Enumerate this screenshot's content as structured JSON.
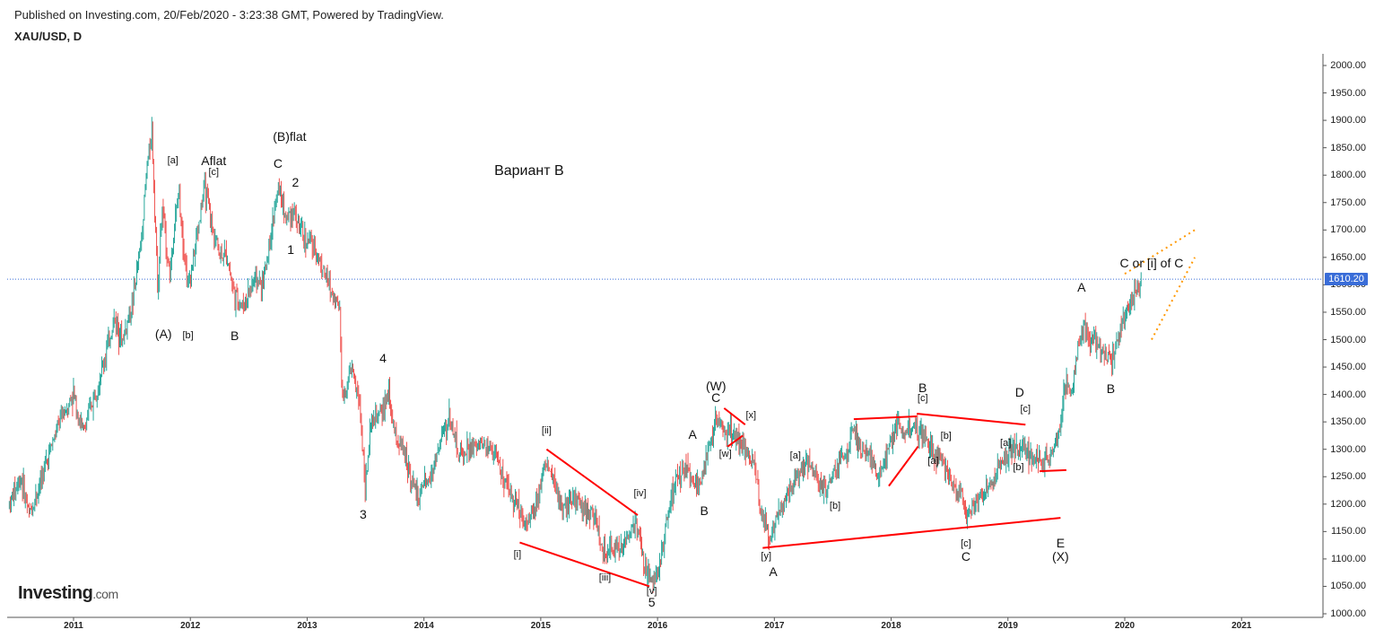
{
  "header": {
    "published": "Published on Investing.com, 20/Feb/2020 - 3:23:38 GMT, Powered by TradingView.",
    "symbol": "XAU/USD, D"
  },
  "logo": {
    "name": "Investing",
    "domain": ".com"
  },
  "chart_data": {
    "type": "candlestick",
    "title": "XAU/USD, D",
    "ylim": [
      1000,
      2000
    ],
    "y_ticks": [
      "2000.00",
      "1950.00",
      "1900.00",
      "1850.00",
      "1800.00",
      "1750.00",
      "1700.00",
      "1650.00",
      "1600.00",
      "1550.00",
      "1500.00",
      "1450.00",
      "1400.00",
      "1350.00",
      "1300.00",
      "1250.00",
      "1200.00",
      "1150.00",
      "1100.00",
      "1050.00",
      "1000.00"
    ],
    "x_ticks": [
      "2011",
      "2012",
      "2013",
      "2014",
      "2015",
      "2016",
      "2017",
      "2018",
      "2019",
      "2020",
      "2021"
    ],
    "last_price": "1610.20",
    "colors": {
      "up": "#26a69a",
      "down": "#ef5350",
      "trendline": "#ff0000",
      "projection": "#ff9800",
      "price_line": "#3a6dd8"
    },
    "path": [
      [
        2010.45,
        1200
      ],
      [
        2010.55,
        1250
      ],
      [
        2010.62,
        1180
      ],
      [
        2010.7,
        1230
      ],
      [
        2010.8,
        1300
      ],
      [
        2010.9,
        1360
      ],
      [
        2011.0,
        1400
      ],
      [
        2011.08,
        1330
      ],
      [
        2011.15,
        1380
      ],
      [
        2011.25,
        1450
      ],
      [
        2011.35,
        1540
      ],
      [
        2011.42,
        1500
      ],
      [
        2011.5,
        1560
      ],
      [
        2011.58,
        1680
      ],
      [
        2011.63,
        1820
      ],
      [
        2011.67,
        1880
      ],
      [
        2011.72,
        1600
      ],
      [
        2011.76,
        1740
      ],
      [
        2011.82,
        1620
      ],
      [
        2011.9,
        1770
      ],
      [
        2011.98,
        1590
      ],
      [
        2012.05,
        1680
      ],
      [
        2012.12,
        1780
      ],
      [
        2012.18,
        1710
      ],
      [
        2012.25,
        1660
      ],
      [
        2012.32,
        1650
      ],
      [
        2012.38,
        1580
      ],
      [
        2012.45,
        1560
      ],
      [
        2012.55,
        1610
      ],
      [
        2012.62,
        1600
      ],
      [
        2012.7,
        1710
      ],
      [
        2012.76,
        1780
      ],
      [
        2012.82,
        1720
      ],
      [
        2012.88,
        1740
      ],
      [
        2012.95,
        1690
      ],
      [
        2013.05,
        1670
      ],
      [
        2013.12,
        1640
      ],
      [
        2013.2,
        1590
      ],
      [
        2013.28,
        1560
      ],
      [
        2013.3,
        1390
      ],
      [
        2013.38,
        1450
      ],
      [
        2013.45,
        1380
      ],
      [
        2013.5,
        1230
      ],
      [
        2013.55,
        1350
      ],
      [
        2013.62,
        1360
      ],
      [
        2013.7,
        1400
      ],
      [
        2013.75,
        1330
      ],
      [
        2013.85,
        1280
      ],
      [
        2013.95,
        1210
      ],
      [
        2014.05,
        1250
      ],
      [
        2014.15,
        1320
      ],
      [
        2014.22,
        1360
      ],
      [
        2014.3,
        1290
      ],
      [
        2014.4,
        1300
      ],
      [
        2014.5,
        1310
      ],
      [
        2014.6,
        1300
      ],
      [
        2014.7,
        1230
      ],
      [
        2014.8,
        1200
      ],
      [
        2014.88,
        1160
      ],
      [
        2014.95,
        1200
      ],
      [
        2015.05,
        1280
      ],
      [
        2015.12,
        1230
      ],
      [
        2015.2,
        1190
      ],
      [
        2015.3,
        1210
      ],
      [
        2015.38,
        1190
      ],
      [
        2015.45,
        1180
      ],
      [
        2015.55,
        1100
      ],
      [
        2015.62,
        1120
      ],
      [
        2015.7,
        1120
      ],
      [
        2015.78,
        1160
      ],
      [
        2015.82,
        1170
      ],
      [
        2015.88,
        1090
      ],
      [
        2015.95,
        1060
      ],
      [
        2016.0,
        1070
      ],
      [
        2016.08,
        1170
      ],
      [
        2016.15,
        1240
      ],
      [
        2016.25,
        1270
      ],
      [
        2016.35,
        1230
      ],
      [
        2016.45,
        1310
      ],
      [
        2016.5,
        1350
      ],
      [
        2016.55,
        1340
      ],
      [
        2016.62,
        1330
      ],
      [
        2016.7,
        1320
      ],
      [
        2016.75,
        1300
      ],
      [
        2016.82,
        1280
      ],
      [
        2016.88,
        1190
      ],
      [
        2016.95,
        1140
      ],
      [
        2017.0,
        1160
      ],
      [
        2017.08,
        1210
      ],
      [
        2017.15,
        1240
      ],
      [
        2017.22,
        1260
      ],
      [
        2017.3,
        1280
      ],
      [
        2017.38,
        1240
      ],
      [
        2017.42,
        1220
      ],
      [
        2017.5,
        1250
      ],
      [
        2017.58,
        1280
      ],
      [
        2017.68,
        1330
      ],
      [
        2017.75,
        1290
      ],
      [
        2017.82,
        1280
      ],
      [
        2017.9,
        1260
      ],
      [
        2017.98,
        1300
      ],
      [
        2018.05,
        1340
      ],
      [
        2018.12,
        1330
      ],
      [
        2018.2,
        1340
      ],
      [
        2018.3,
        1320
      ],
      [
        2018.38,
        1290
      ],
      [
        2018.45,
        1270
      ],
      [
        2018.52,
        1240
      ],
      [
        2018.6,
        1220
      ],
      [
        2018.65,
        1180
      ],
      [
        2018.7,
        1200
      ],
      [
        2018.78,
        1220
      ],
      [
        2018.85,
        1230
      ],
      [
        2018.95,
        1280
      ],
      [
        2019.05,
        1300
      ],
      [
        2019.12,
        1310
      ],
      [
        2019.2,
        1290
      ],
      [
        2019.3,
        1280
      ],
      [
        2019.38,
        1290
      ],
      [
        2019.45,
        1350
      ],
      [
        2019.5,
        1420
      ],
      [
        2019.55,
        1410
      ],
      [
        2019.6,
        1490
      ],
      [
        2019.65,
        1530
      ],
      [
        2019.7,
        1500
      ],
      [
        2019.78,
        1490
      ],
      [
        2019.85,
        1470
      ],
      [
        2019.88,
        1460
      ],
      [
        2019.95,
        1510
      ],
      [
        2020.02,
        1560
      ],
      [
        2020.08,
        1580
      ],
      [
        2020.12,
        1590
      ],
      [
        2020.14,
        1610
      ]
    ],
    "trendlines": [
      [
        [
          2015.05,
          1300
        ],
        [
          2015.83,
          1180
        ]
      ],
      [
        [
          2014.82,
          1130
        ],
        [
          2015.93,
          1050
        ]
      ],
      [
        [
          2016.57,
          1375
        ],
        [
          2016.75,
          1345
        ]
      ],
      [
        [
          2016.6,
          1305
        ],
        [
          2016.73,
          1325
        ]
      ],
      [
        [
          2016.9,
          1120
        ],
        [
          2019.45,
          1175
        ]
      ],
      [
        [
          2017.68,
          1355
        ],
        [
          2018.22,
          1360
        ]
      ],
      [
        [
          2018.22,
          1365
        ],
        [
          2019.15,
          1345
        ]
      ],
      [
        [
          2017.98,
          1233
        ],
        [
          2018.23,
          1305
        ]
      ],
      [
        [
          2019.27,
          1260
        ],
        [
          2019.5,
          1262
        ]
      ]
    ],
    "projections": [
      [
        [
          2020.0,
          1620
        ],
        [
          2020.6,
          1700
        ]
      ],
      [
        [
          2020.23,
          1500
        ],
        [
          2020.6,
          1650
        ]
      ]
    ],
    "wave_labels": [
      {
        "t": "(A)",
        "x": 2011.77,
        "y": 1510,
        "s": ""
      },
      {
        "t": "[a]",
        "x": 2011.85,
        "y": 1827,
        "s": "small"
      },
      {
        "t": "Aflat",
        "x": 2012.2,
        "y": 1827,
        "s": ""
      },
      {
        "t": "[c]",
        "x": 2012.2,
        "y": 1806,
        "s": "small"
      },
      {
        "t": "[b]",
        "x": 2011.98,
        "y": 1507,
        "s": "small"
      },
      {
        "t": "B",
        "x": 2012.38,
        "y": 1508,
        "s": ""
      },
      {
        "t": "(B)flat",
        "x": 2012.85,
        "y": 1870,
        "s": ""
      },
      {
        "t": "C",
        "x": 2012.75,
        "y": 1822,
        "s": ""
      },
      {
        "t": "2",
        "x": 2012.9,
        "y": 1787,
        "s": ""
      },
      {
        "t": "1",
        "x": 2012.86,
        "y": 1665,
        "s": ""
      },
      {
        "t": "Вариант В",
        "x": 2014.9,
        "y": 1807,
        "s": "variant"
      },
      {
        "t": "4",
        "x": 2013.65,
        "y": 1466,
        "s": ""
      },
      {
        "t": "3",
        "x": 2013.48,
        "y": 1182,
        "s": ""
      },
      {
        "t": "[ii]",
        "x": 2015.05,
        "y": 1334,
        "s": "small"
      },
      {
        "t": "[i]",
        "x": 2014.8,
        "y": 1108,
        "s": "small"
      },
      {
        "t": "[iv]",
        "x": 2015.85,
        "y": 1220,
        "s": "small"
      },
      {
        "t": "[iii]",
        "x": 2015.55,
        "y": 1066,
        "s": "small"
      },
      {
        "t": "[v]",
        "x": 2015.95,
        "y": 1041,
        "s": "small"
      },
      {
        "t": "5",
        "x": 2015.95,
        "y": 1021,
        "s": ""
      },
      {
        "t": "(W)",
        "x": 2016.5,
        "y": 1416,
        "s": ""
      },
      {
        "t": "C",
        "x": 2016.5,
        "y": 1395,
        "s": ""
      },
      {
        "t": "A",
        "x": 2016.3,
        "y": 1328,
        "s": ""
      },
      {
        "t": "B",
        "x": 2016.4,
        "y": 1188,
        "s": ""
      },
      {
        "t": "[x]",
        "x": 2016.8,
        "y": 1362,
        "s": "small"
      },
      {
        "t": "[w]",
        "x": 2016.58,
        "y": 1292,
        "s": "small"
      },
      {
        "t": "[y]",
        "x": 2016.93,
        "y": 1105,
        "s": "small"
      },
      {
        "t": "A",
        "x": 2016.99,
        "y": 1077,
        "s": ""
      },
      {
        "t": "[a]",
        "x": 2017.18,
        "y": 1288,
        "s": "small"
      },
      {
        "t": "[b]",
        "x": 2017.52,
        "y": 1196,
        "s": "small"
      },
      {
        "t": "B",
        "x": 2018.27,
        "y": 1413,
        "s": ""
      },
      {
        "t": "[c]",
        "x": 2018.27,
        "y": 1393,
        "s": "small"
      },
      {
        "t": "[b]",
        "x": 2018.47,
        "y": 1324,
        "s": "small"
      },
      {
        "t": "[a]",
        "x": 2018.36,
        "y": 1278,
        "s": "small"
      },
      {
        "t": "[c]",
        "x": 2018.64,
        "y": 1127,
        "s": "small"
      },
      {
        "t": "C",
        "x": 2018.64,
        "y": 1105,
        "s": ""
      },
      {
        "t": "D",
        "x": 2019.1,
        "y": 1404,
        "s": ""
      },
      {
        "t": "[c]",
        "x": 2019.15,
        "y": 1373,
        "s": "small"
      },
      {
        "t": "[a]",
        "x": 2018.98,
        "y": 1311,
        "s": "small"
      },
      {
        "t": "[b]",
        "x": 2019.09,
        "y": 1266,
        "s": "small"
      },
      {
        "t": "E",
        "x": 2019.45,
        "y": 1129,
        "s": ""
      },
      {
        "t": "(X)",
        "x": 2019.45,
        "y": 1105,
        "s": ""
      },
      {
        "t": "A",
        "x": 2019.63,
        "y": 1595,
        "s": ""
      },
      {
        "t": "B",
        "x": 2019.88,
        "y": 1411,
        "s": ""
      },
      {
        "t": "C or [i] of C",
        "x": 2020.23,
        "y": 1640,
        "s": ""
      }
    ]
  }
}
